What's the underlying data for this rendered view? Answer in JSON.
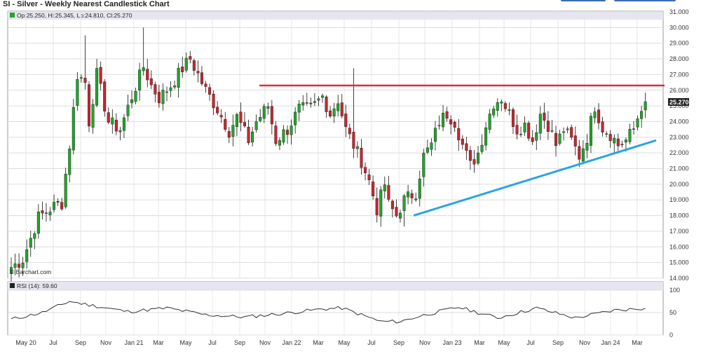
{
  "title": "SI - Silver - Weekly Nearest Candlestick Chart",
  "ohlc_label": "Op:25.250, Hi:25.345, Lo:24.810, Cl:25.270",
  "watermark": "© Barchart.com",
  "last_price_label": "25.270",
  "rsi_label": "RSI (14): 59.60",
  "colors": {
    "up": "#22a52a",
    "down": "#c8262c",
    "resistance": "#d62f3a",
    "support": "#2aa5e0",
    "rsi": "#333333",
    "grid": "#d8d8d8",
    "header_band": "#e6e6f2"
  },
  "chart_data": [
    {
      "type": "candlestick",
      "title": "SI - Silver - Weekly Nearest Candlestick Chart",
      "x_tick_labels": [
        "May 20",
        "Jul",
        "Sep",
        "Nov",
        "Jan 21",
        "Mar",
        "May",
        "Jul",
        "Sep",
        "Nov",
        "Jan 22",
        "Mar",
        "May",
        "Jul",
        "Sep",
        "Nov",
        "Jan 23",
        "Mar",
        "May",
        "Jul",
        "Sep",
        "Nov",
        "Jan 24",
        "Mar"
      ],
      "y_tick_labels": [
        "31.000",
        "30.000",
        "29.000",
        "28.000",
        "27.000",
        "26.000",
        "25.000",
        "24.000",
        "23.000",
        "22.000",
        "21.000",
        "20.000",
        "19.000",
        "18.000",
        "17.000",
        "16.000",
        "15.000",
        "14.000"
      ],
      "ylim": [
        14,
        31
      ],
      "grid": true,
      "anchor_closes": [
        [
          0,
          14.7
        ],
        [
          3,
          15.2
        ],
        [
          7,
          17.9
        ],
        [
          11,
          18.6
        ],
        [
          13,
          18.8
        ],
        [
          15,
          22.5
        ],
        [
          17,
          27.0
        ],
        [
          19,
          26.5
        ],
        [
          20,
          24.0
        ],
        [
          22,
          27.0
        ],
        [
          25,
          24.0
        ],
        [
          28,
          23.5
        ],
        [
          31,
          25.6
        ],
        [
          34,
          27.5
        ],
        [
          36,
          26.3
        ],
        [
          38,
          25.5
        ],
        [
          41,
          26.3
        ],
        [
          44,
          27.4
        ],
        [
          46,
          28.0
        ],
        [
          48,
          27.0
        ],
        [
          50,
          26.0
        ],
        [
          53,
          24.8
        ],
        [
          56,
          23.4
        ],
        [
          58,
          24.3
        ],
        [
          61,
          22.8
        ],
        [
          63,
          24.0
        ],
        [
          66,
          25.0
        ],
        [
          68,
          22.8
        ],
        [
          71,
          23.5
        ],
        [
          74,
          24.8
        ],
        [
          77,
          24.8
        ],
        [
          80,
          25.6
        ],
        [
          82,
          24.5
        ],
        [
          84,
          25.4
        ],
        [
          86,
          23.5
        ],
        [
          88,
          22.5
        ],
        [
          90,
          21.5
        ],
        [
          92,
          20.2
        ],
        [
          94,
          18.4
        ],
        [
          96,
          20.0
        ],
        [
          97,
          18.7
        ],
        [
          99,
          18.0
        ],
        [
          101,
          19.0
        ],
        [
          104,
          19.5
        ],
        [
          106,
          21.8
        ],
        [
          108,
          22.5
        ],
        [
          110,
          24.0
        ],
        [
          112,
          24.5
        ],
        [
          114,
          24.0
        ],
        [
          116,
          22.5
        ],
        [
          118,
          21.2
        ],
        [
          120,
          22.0
        ],
        [
          122,
          23.8
        ],
        [
          124,
          25.2
        ],
        [
          126,
          25.5
        ],
        [
          128,
          24.5
        ],
        [
          130,
          23.5
        ],
        [
          132,
          23.8
        ],
        [
          134,
          22.8
        ],
        [
          136,
          24.5
        ],
        [
          138,
          23.8
        ],
        [
          140,
          22.5
        ],
        [
          142,
          23.5
        ],
        [
          144,
          22.8
        ],
        [
          146,
          21.8
        ],
        [
          148,
          23.0
        ],
        [
          150,
          25.0
        ],
        [
          152,
          23.6
        ],
        [
          154,
          23.2
        ],
        [
          156,
          22.5
        ],
        [
          158,
          22.8
        ],
        [
          160,
          23.5
        ],
        [
          162,
          25.0
        ],
        [
          163,
          25.27
        ]
      ],
      "highlights": [
        [
          19,
          29.5
        ],
        [
          22,
          28.0
        ],
        [
          34,
          30.0
        ],
        [
          46,
          28.5
        ],
        [
          88,
          27.4
        ],
        [
          101,
          17.3
        ],
        [
          112,
          24.0
        ]
      ],
      "resistance_line": {
        "x1": 62,
        "y1": 26.3,
        "x2": 164,
        "y2": 26.3
      },
      "support_line": {
        "x1": 102,
        "y1": 18.0,
        "x2": 164,
        "y2": 22.8
      }
    },
    {
      "type": "line",
      "title": "RSI (14): 59.60",
      "y_tick_labels": [
        "100",
        "50",
        "0"
      ],
      "ylim": [
        0,
        100
      ],
      "rsi_anchors": [
        [
          0,
          35
        ],
        [
          8,
          50
        ],
        [
          15,
          75
        ],
        [
          20,
          67
        ],
        [
          30,
          52
        ],
        [
          40,
          60
        ],
        [
          50,
          45
        ],
        [
          60,
          40
        ],
        [
          70,
          48
        ],
        [
          80,
          58
        ],
        [
          85,
          60
        ],
        [
          95,
          30
        ],
        [
          100,
          30
        ],
        [
          105,
          42
        ],
        [
          115,
          62
        ],
        [
          125,
          38
        ],
        [
          135,
          60
        ],
        [
          145,
          38
        ],
        [
          155,
          55
        ],
        [
          163,
          59.6
        ]
      ]
    }
  ]
}
